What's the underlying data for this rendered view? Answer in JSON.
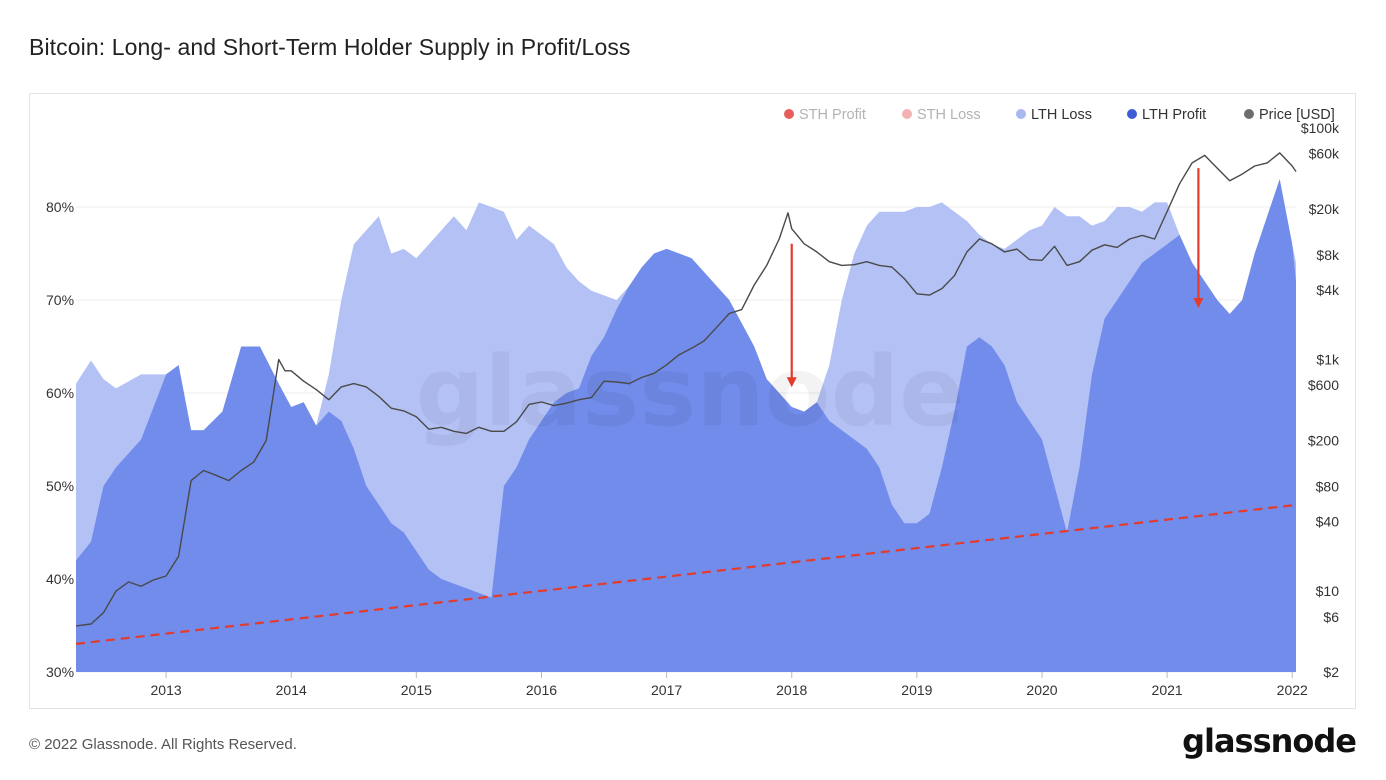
{
  "title": "Bitcoin: Long- and Short-Term Holder Supply in Profit/Loss",
  "footer": "© 2022 Glassnode. All Rights Reserved.",
  "brand": "glassnode",
  "watermark": "glassnode",
  "colors": {
    "sth_profit": "#e0423f",
    "sth_loss": "#f0a3a6",
    "lth_loss": "#b4c1f5",
    "lth_profit": "#718ceb",
    "lth_profit_dot": "#3f5bd6",
    "price": "#4a4a4a",
    "trend": "#e53b2c"
  },
  "chart_data": {
    "type": "area",
    "legend": [
      {
        "name": "STH Profit",
        "color": "#e0423f",
        "muted": true
      },
      {
        "name": "STH Loss",
        "color": "#f0a3a6",
        "muted": true
      },
      {
        "name": "LTH Loss",
        "color": "#a9b8f3",
        "muted": false
      },
      {
        "name": "LTH Profit",
        "color": "#3f5bd6",
        "muted": false
      },
      {
        "name": "Price [USD]",
        "color": "#6d6d6d",
        "muted": false
      }
    ],
    "legend_position": "top-right",
    "x_ticks": [
      "2013",
      "2014",
      "2015",
      "2016",
      "2017",
      "2018",
      "2019",
      "2020",
      "2021",
      "2022"
    ],
    "x_range": [
      2012.28,
      2022.03
    ],
    "y_left": {
      "ticks": [
        "30%",
        "40%",
        "50%",
        "60%",
        "70%",
        "80%"
      ],
      "values": [
        30,
        40,
        50,
        60,
        70,
        80
      ],
      "range": [
        30,
        88.5
      ]
    },
    "y_right": {
      "ticks": [
        "$2",
        "$6",
        "$10",
        "$40",
        "$80",
        "$200",
        "$600",
        "$1k",
        "$4k",
        "$8k",
        "$20k",
        "$60k",
        "$100k"
      ],
      "values": [
        2,
        6,
        10,
        40,
        80,
        200,
        600,
        1000,
        4000,
        8000,
        20000,
        60000,
        100000
      ],
      "scale": "log",
      "range": [
        2,
        100000
      ]
    },
    "series": [
      {
        "name": "LTH Loss",
        "x": [
          2012.28,
          2012.4,
          2012.5,
          2012.6,
          2012.8,
          2013.0,
          2013.1,
          2013.2,
          2013.3,
          2013.45,
          2013.6,
          2013.75,
          2013.9,
          2014.0,
          2014.1,
          2014.2,
          2014.3,
          2014.4,
          2014.5,
          2014.6,
          2014.7,
          2014.8,
          2014.9,
          2015.0,
          2015.1,
          2015.2,
          2015.3,
          2015.4,
          2015.5,
          2015.6,
          2015.7,
          2015.8,
          2015.9,
          2016.0,
          2016.1,
          2016.2,
          2016.3,
          2016.4,
          2016.5,
          2016.6,
          2016.7,
          2016.8,
          2016.9,
          2017.0,
          2017.1,
          2017.2,
          2017.3,
          2017.4,
          2017.5,
          2017.6,
          2017.7,
          2017.8,
          2017.9,
          2018.0,
          2018.1,
          2018.2,
          2018.3,
          2018.4,
          2018.5,
          2018.6,
          2018.7,
          2018.8,
          2018.9,
          2019.0,
          2019.1,
          2019.2,
          2019.3,
          2019.4,
          2019.5,
          2019.6,
          2019.7,
          2019.8,
          2019.9,
          2020.0,
          2020.1,
          2020.2,
          2020.3,
          2020.4,
          2020.5,
          2020.6,
          2020.7,
          2020.8,
          2020.9,
          2021.0,
          2021.1,
          2021.2,
          2021.3,
          2021.4,
          2021.5,
          2021.6,
          2021.7,
          2021.8,
          2021.9,
          2022.0,
          2022.03
        ],
        "values": [
          61,
          63.5,
          61.5,
          60.5,
          62,
          62,
          63,
          56,
          56,
          58,
          65,
          65,
          61,
          58.5,
          59,
          56.5,
          62,
          70,
          76,
          77.5,
          79,
          75,
          75.5,
          74.5,
          76,
          77.5,
          79,
          77.5,
          80.5,
          80,
          79.5,
          76.5,
          78,
          77,
          76,
          73.5,
          72,
          71,
          70.5,
          70,
          71.5,
          73.5,
          75,
          75.5,
          75,
          74.5,
          73,
          71.5,
          70,
          67.5,
          65,
          61.5,
          60,
          58.5,
          58,
          59,
          63,
          70,
          75,
          78,
          79.5,
          79.5,
          79.5,
          80,
          80,
          80.5,
          79.5,
          78.5,
          77,
          76,
          75.5,
          76.5,
          77.5,
          78,
          80,
          79,
          79,
          78,
          78.5,
          80,
          80,
          79.5,
          80.5,
          80.5,
          77,
          74,
          72,
          70,
          68.5,
          70,
          75,
          79,
          83,
          76,
          74
        ]
      },
      {
        "name": "LTH Profit",
        "x": [
          2012.28,
          2012.4,
          2012.5,
          2012.6,
          2012.8,
          2013.0,
          2013.1,
          2013.2,
          2013.3,
          2013.45,
          2013.6,
          2013.75,
          2013.9,
          2014.0,
          2014.1,
          2014.2,
          2014.3,
          2014.4,
          2014.5,
          2014.6,
          2014.7,
          2014.8,
          2014.9,
          2015.0,
          2015.1,
          2015.2,
          2015.3,
          2015.4,
          2015.5,
          2015.6,
          2015.7,
          2015.8,
          2015.9,
          2016.0,
          2016.1,
          2016.2,
          2016.3,
          2016.4,
          2016.5,
          2016.6,
          2016.7,
          2016.8,
          2016.9,
          2017.0,
          2017.1,
          2017.2,
          2017.3,
          2017.4,
          2017.5,
          2017.6,
          2017.7,
          2017.8,
          2017.9,
          2018.0,
          2018.1,
          2018.2,
          2018.3,
          2018.4,
          2018.5,
          2018.6,
          2018.7,
          2018.8,
          2018.9,
          2019.0,
          2019.1,
          2019.2,
          2019.3,
          2019.4,
          2019.5,
          2019.6,
          2019.7,
          2019.8,
          2019.9,
          2020.0,
          2020.1,
          2020.2,
          2020.3,
          2020.4,
          2020.5,
          2020.6,
          2020.7,
          2020.8,
          2020.9,
          2021.0,
          2021.1,
          2021.2,
          2021.3,
          2021.4,
          2021.5,
          2021.6,
          2021.7,
          2021.8,
          2021.9,
          2022.0,
          2022.03
        ],
        "values": [
          42,
          44,
          50,
          52,
          55,
          62,
          63,
          56,
          56,
          58,
          65,
          65,
          61,
          58.5,
          59,
          56.5,
          58,
          57,
          54,
          50,
          48,
          46,
          45,
          43,
          41,
          40,
          39.5,
          39,
          38.5,
          38,
          50,
          52,
          55,
          57,
          59,
          60,
          60.5,
          64,
          66,
          69,
          71.5,
          73.5,
          75,
          75.5,
          75,
          74.5,
          73,
          71.5,
          70,
          67.5,
          65,
          61.5,
          60,
          58.5,
          58,
          59,
          57,
          56,
          55,
          54,
          52,
          48,
          46,
          46,
          47,
          52,
          58,
          65,
          66,
          65,
          63,
          59,
          57,
          55,
          50,
          45,
          52,
          62,
          68,
          70,
          72,
          74,
          75,
          76,
          77,
          74,
          72,
          70,
          68.5,
          70,
          75,
          79,
          83,
          76,
          72
        ]
      },
      {
        "name": "Price [USD]",
        "x": [
          2012.28,
          2012.4,
          2012.5,
          2012.6,
          2012.7,
          2012.8,
          2012.9,
          2013.0,
          2013.1,
          2013.2,
          2013.3,
          2013.4,
          2013.5,
          2013.6,
          2013.7,
          2013.8,
          2013.9,
          2013.95,
          2014.0,
          2014.1,
          2014.2,
          2014.3,
          2014.4,
          2014.5,
          2014.6,
          2014.7,
          2014.8,
          2014.9,
          2015.0,
          2015.1,
          2015.2,
          2015.3,
          2015.4,
          2015.5,
          2015.6,
          2015.7,
          2015.8,
          2015.9,
          2016.0,
          2016.1,
          2016.2,
          2016.3,
          2016.4,
          2016.5,
          2016.6,
          2016.7,
          2016.8,
          2016.9,
          2017.0,
          2017.1,
          2017.2,
          2017.3,
          2017.4,
          2017.5,
          2017.6,
          2017.7,
          2017.8,
          2017.9,
          2017.97,
          2018.0,
          2018.1,
          2018.2,
          2018.3,
          2018.4,
          2018.5,
          2018.6,
          2018.7,
          2018.8,
          2018.9,
          2019.0,
          2019.1,
          2019.2,
          2019.3,
          2019.4,
          2019.5,
          2019.6,
          2019.7,
          2019.8,
          2019.9,
          2020.0,
          2020.1,
          2020.2,
          2020.3,
          2020.4,
          2020.5,
          2020.6,
          2020.7,
          2020.8,
          2020.9,
          2021.0,
          2021.1,
          2021.2,
          2021.3,
          2021.4,
          2021.5,
          2021.6,
          2021.7,
          2021.8,
          2021.9,
          2022.0,
          2022.03
        ],
        "values": [
          5,
          5.2,
          6.5,
          10,
          12,
          11,
          12.5,
          13.5,
          20,
          90,
          110,
          100,
          90,
          110,
          130,
          200,
          1000,
          800,
          800,
          650,
          550,
          450,
          580,
          620,
          580,
          480,
          380,
          360,
          320,
          250,
          260,
          240,
          230,
          260,
          240,
          240,
          290,
          410,
          430,
          400,
          420,
          450,
          470,
          650,
          640,
          620,
          700,
          760,
          900,
          1100,
          1250,
          1450,
          1900,
          2500,
          2700,
          4400,
          6500,
          11000,
          18500,
          13500,
          10000,
          8500,
          7000,
          6500,
          6600,
          7000,
          6500,
          6300,
          5000,
          3700,
          3600,
          4100,
          5300,
          8500,
          11000,
          10000,
          8500,
          9000,
          7300,
          7200,
          9500,
          6500,
          7000,
          8800,
          9800,
          9300,
          11000,
          11800,
          11000,
          19000,
          33000,
          50000,
          58000,
          45000,
          35000,
          40000,
          47000,
          50000,
          61000,
          47000,
          42000
        ]
      },
      {
        "name": "Trend",
        "x": [
          2012.28,
          2022.0
        ],
        "values": [
          3.5,
          55
        ]
      }
    ],
    "annotations": [
      {
        "type": "arrow",
        "x": 2018.0,
        "from": 10000,
        "to": 600
      },
      {
        "type": "arrow",
        "x": 2021.25,
        "from": 45000,
        "to": 2900
      }
    ]
  }
}
